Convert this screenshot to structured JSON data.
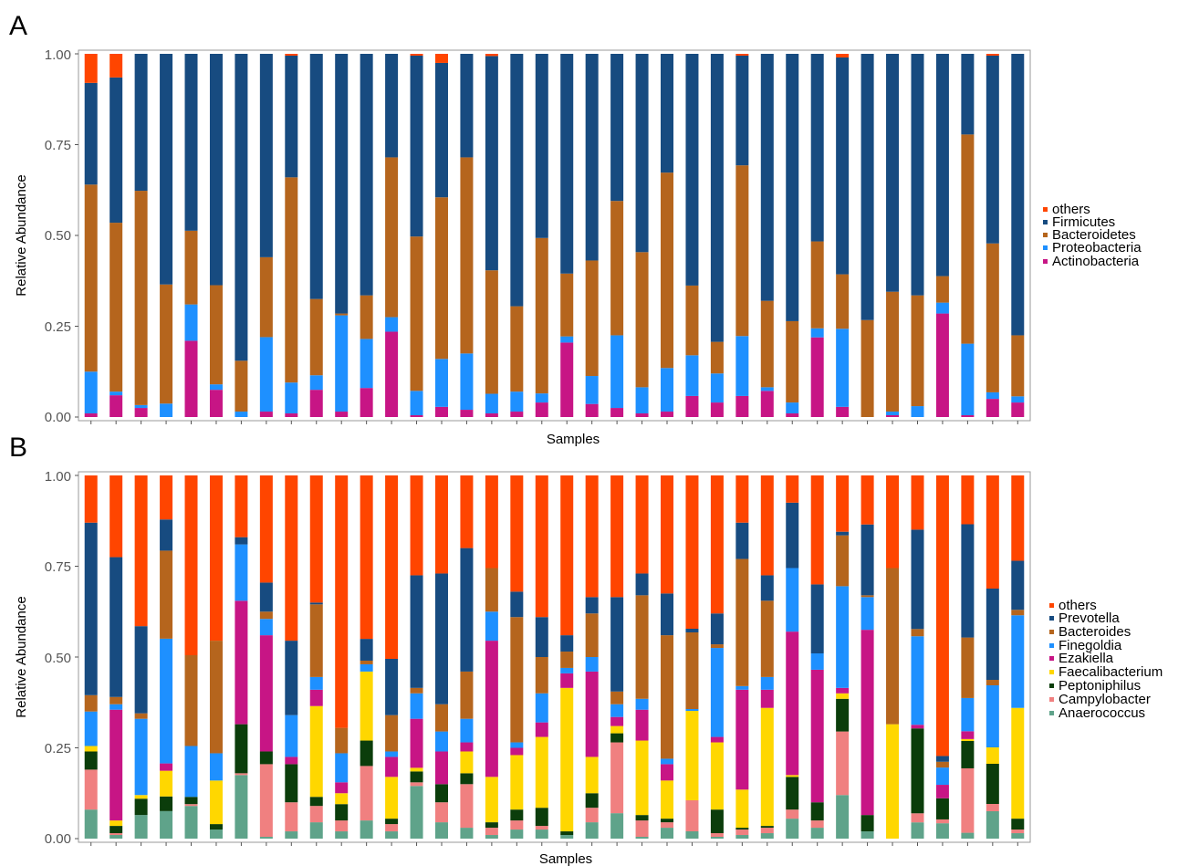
{
  "colors": {
    "others": "#FF4500",
    "dark_blue": "#174B80",
    "brown": "#B5651D",
    "light_blue": "#1E90FF",
    "magenta": "#C71585",
    "yellow": "#FFD700",
    "dark_green": "#0B3D0B",
    "salmon": "#F08080",
    "teal_green": "#5FA38A"
  },
  "chart_data": [
    {
      "panel_label": "A",
      "type": "bar",
      "stacked": true,
      "xlabel": "Samples",
      "ylabel": "Relative Abundance",
      "ylim": [
        0,
        1
      ],
      "yticks": [
        "0.00",
        "0.25",
        "0.50",
        "0.75",
        "1.00"
      ],
      "legend_position": "right",
      "series_order_bottom_to_top": [
        "Actinobacteria",
        "Proteobacteria",
        "Bacteroidetes",
        "Firmicutes",
        "others"
      ],
      "legend": [
        "others",
        "Firmicutes",
        "Bacteroidetes",
        "Proteobacteria",
        "Actinobacteria"
      ],
      "series": [
        {
          "name": "Actinobacteria",
          "color": "#C71585",
          "values": [
            0.01,
            0.06,
            0.025,
            0,
            0.21,
            0.075,
            0,
            0.015,
            0.01,
            0.075,
            0.015,
            0.08,
            0.235,
            0.005,
            0.028,
            0.02,
            0.01,
            0.015,
            0.04,
            0.205,
            0.036,
            0.025,
            0.01,
            0.015,
            0.058,
            0.04,
            0.058,
            0.072,
            0.01,
            0.22,
            0.028,
            0,
            0.005,
            0,
            0.285,
            0.005,
            0.05,
            0.04
          ]
        },
        {
          "name": "Proteobacteria",
          "color": "#1E90FF",
          "values": [
            0.115,
            0.01,
            0.008,
            0.037,
            0.1,
            0.015,
            0.015,
            0.205,
            0.085,
            0.04,
            0.265,
            0.135,
            0.04,
            0.067,
            0.132,
            0.155,
            0.054,
            0.055,
            0.025,
            0.017,
            0.077,
            0.2,
            0.072,
            0.12,
            0.112,
            0.08,
            0.165,
            0.01,
            0.03,
            0.025,
            0.215,
            0,
            0.01,
            0.03,
            0.03,
            0.197,
            0.018,
            0.017
          ]
        },
        {
          "name": "Bacteroidetes",
          "color": "#B5651D",
          "values": [
            0.515,
            0.465,
            0.59,
            0.328,
            0.203,
            0.273,
            0.14,
            0.22,
            0.565,
            0.21,
            0.005,
            0.12,
            0.44,
            0.425,
            0.445,
            0.54,
            0.34,
            0.235,
            0.428,
            0.173,
            0.318,
            0.37,
            0.372,
            0.538,
            0.192,
            0.087,
            0.47,
            0.238,
            0.224,
            0.24,
            0.15,
            0.267,
            0.33,
            0.305,
            0.073,
            0.576,
            0.41,
            0.168
          ]
        },
        {
          "name": "Firmicutes",
          "color": "#174B80",
          "values": [
            0.28,
            0.4,
            0.377,
            0.635,
            0.487,
            0.637,
            0.845,
            0.56,
            0.335,
            0.675,
            0.715,
            0.665,
            0.285,
            0.498,
            0.37,
            0.285,
            0.59,
            0.695,
            0.507,
            0.605,
            0.569,
            0.405,
            0.546,
            0.327,
            0.638,
            0.793,
            0.302,
            0.68,
            0.736,
            0.518,
            0.597,
            0.733,
            0.655,
            0.665,
            0.612,
            0.222,
            0.517,
            0.775
          ]
        },
        {
          "name": "others",
          "color": "#FF4500",
          "values": [
            0.08,
            0.065,
            0,
            0,
            0,
            0,
            0,
            0,
            0.005,
            0,
            0,
            0,
            0,
            0.005,
            0.025,
            0,
            0.006,
            0,
            0,
            0,
            0,
            0,
            0,
            0,
            0,
            0,
            0.005,
            0,
            0,
            0,
            0.01,
            0,
            0,
            0,
            0,
            0,
            0.005,
            0
          ]
        }
      ]
    },
    {
      "panel_label": "B",
      "type": "bar",
      "stacked": true,
      "xlabel": "Samples",
      "ylabel": "Relative Abundance",
      "ylim": [
        0,
        1
      ],
      "yticks": [
        "0.00",
        "0.25",
        "0.50",
        "0.75",
        "1.00"
      ],
      "legend_position": "right",
      "series_order_bottom_to_top": [
        "Anaerococcus",
        "Campylobacter",
        "Peptoniphilus",
        "Faecalibacterium",
        "Ezakiella",
        "Finegoldia",
        "Bacteroides",
        "Prevotella",
        "others"
      ],
      "legend": [
        "others",
        "Prevotella",
        "Bacteroides",
        "Finegoldia",
        "Ezakiella",
        "Faecalibacterium",
        "Peptoniphilus",
        "Campylobacter",
        "Anaerococcus"
      ],
      "series": [
        {
          "name": "Anaerococcus",
          "color": "#5FA38A",
          "values": [
            0.08,
            0.01,
            0.065,
            0.075,
            0.09,
            0.025,
            0.175,
            0.005,
            0.02,
            0.045,
            0.02,
            0.05,
            0.02,
            0.145,
            0.045,
            0.03,
            0.01,
            0.025,
            0.025,
            0.01,
            0.045,
            0.07,
            0.005,
            0.03,
            0.02,
            0.005,
            0.01,
            0.015,
            0.055,
            0.03,
            0.12,
            0.02,
            0,
            0.045,
            0.04,
            0.015,
            0.075,
            0.015
          ]
        },
        {
          "name": "Campylobacter",
          "color": "#F08080",
          "values": [
            0.11,
            0.005,
            0,
            0,
            0.005,
            0,
            0.005,
            0.2,
            0.08,
            0.045,
            0.03,
            0.15,
            0.02,
            0.01,
            0.055,
            0.12,
            0.02,
            0.025,
            0.01,
            0,
            0.04,
            0.195,
            0.045,
            0.015,
            0.085,
            0.01,
            0.015,
            0.015,
            0.025,
            0.02,
            0.175,
            0,
            0,
            0.025,
            0.01,
            0.165,
            0.02,
            0.01
          ]
        },
        {
          "name": "Peptoniphilus",
          "color": "#0B3D0B",
          "values": [
            0.05,
            0.02,
            0.045,
            0.04,
            0.02,
            0.015,
            0.135,
            0.035,
            0.105,
            0.025,
            0.045,
            0.07,
            0.015,
            0.03,
            0.05,
            0.03,
            0.015,
            0.03,
            0.05,
            0.01,
            0.04,
            0.025,
            0.015,
            0.01,
            0,
            0.065,
            0.005,
            0.005,
            0.09,
            0.05,
            0.09,
            0.045,
            0,
            0.235,
            0.055,
            0.07,
            0.11,
            0.03
          ]
        },
        {
          "name": "Faecalibacterium",
          "color": "#FFD700",
          "values": [
            0.015,
            0.015,
            0.01,
            0.07,
            0,
            0.12,
            0,
            0,
            0,
            0.25,
            0.03,
            0.19,
            0.115,
            0.01,
            0,
            0.06,
            0.125,
            0.15,
            0.195,
            0.395,
            0.1,
            0.02,
            0.205,
            0.105,
            0.245,
            0.185,
            0.105,
            0.325,
            0.005,
            0,
            0.015,
            0,
            0.315,
            0,
            0,
            0.005,
            0.045,
            0.305
          ]
        },
        {
          "name": "Ezakiella",
          "color": "#C71585",
          "values": [
            0,
            0.305,
            0,
            0.02,
            0,
            0,
            0.34,
            0.32,
            0.02,
            0.045,
            0.03,
            0,
            0.055,
            0.135,
            0.09,
            0.025,
            0.375,
            0.02,
            0.04,
            0.04,
            0.235,
            0.025,
            0.085,
            0.045,
            0,
            0.015,
            0.275,
            0.05,
            0.395,
            0.365,
            0.015,
            0.51,
            0,
            0.01,
            0.035,
            0.02,
            0,
            0
          ]
        },
        {
          "name": "Finegoldia",
          "color": "#1E90FF",
          "values": [
            0.095,
            0.015,
            0.21,
            0.34,
            0.14,
            0.075,
            0.155,
            0.045,
            0.115,
            0.035,
            0.08,
            0.02,
            0.015,
            0.07,
            0.055,
            0.065,
            0.08,
            0.015,
            0.08,
            0.015,
            0.04,
            0.035,
            0.03,
            0.015,
            0.005,
            0.245,
            0.01,
            0.035,
            0.175,
            0.045,
            0.28,
            0.09,
            0,
            0.245,
            0.045,
            0.085,
            0.17,
            0.255
          ]
        },
        {
          "name": "Bacteroides",
          "color": "#B5651D",
          "values": [
            0.045,
            0.02,
            0.015,
            0.24,
            0.25,
            0.31,
            0,
            0.02,
            0,
            0.2,
            0.07,
            0.01,
            0.1,
            0.015,
            0.075,
            0.13,
            0.12,
            0.345,
            0.1,
            0.045,
            0.12,
            0.035,
            0.285,
            0.34,
            0.21,
            0.01,
            0.35,
            0.21,
            0,
            0,
            0.14,
            0.005,
            0.43,
            0.02,
            0.015,
            0.155,
            0.015,
            0.015
          ]
        },
        {
          "name": "Prevotella",
          "color": "#174B80",
          "values": [
            0.475,
            0.385,
            0.24,
            0.085,
            0,
            0,
            0.02,
            0.08,
            0.205,
            0.005,
            0,
            0.06,
            0.155,
            0.31,
            0.36,
            0.34,
            0,
            0.07,
            0.11,
            0.045,
            0.045,
            0.26,
            0.06,
            0.115,
            0.01,
            0.085,
            0.1,
            0.07,
            0.18,
            0.19,
            0.01,
            0.195,
            0,
            0.275,
            0.015,
            0.29,
            0.25,
            0.135
          ]
        },
        {
          "name": "others",
          "color": "#FF4500",
          "values": [
            0.13,
            0.225,
            0.415,
            0.12,
            0.495,
            0.455,
            0.17,
            0.295,
            0.455,
            0.35,
            0.695,
            0.45,
            0.505,
            0.275,
            0.27,
            0.2,
            0.255,
            0.32,
            0.39,
            0.44,
            0.335,
            0.335,
            0.27,
            0.325,
            0.42,
            0.38,
            0.13,
            0.275,
            0.075,
            0.3,
            0.155,
            0.135,
            0.255,
            0.15,
            0.73,
            0.125,
            0.31,
            0.235
          ]
        }
      ]
    }
  ]
}
